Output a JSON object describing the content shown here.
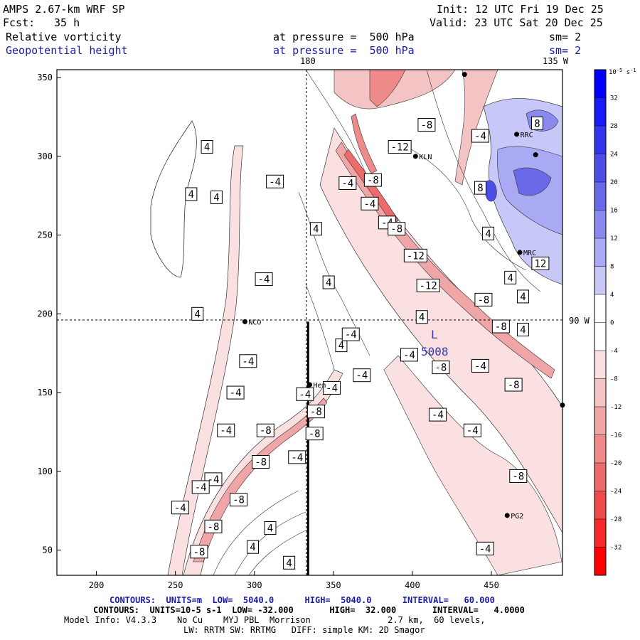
{
  "header": {
    "model": "AMPS 2.67-km WRF SP",
    "init": "Init: 12 UTC Fri 19 Dec 25",
    "fcst_label": "Fcst:",
    "fcst_value": "35 h",
    "valid": "Valid: 23 UTC Sat 20 Dec 25",
    "field1_name": "Relative vorticity",
    "field1_level": "at pressure =  500 hPa",
    "field1_sm": "sm= 2",
    "field2_name": "Geopotential height",
    "field2_level": "at pressure =  500 hPa",
    "field2_sm": "sm= 2"
  },
  "map_labels": {
    "lon_180": "180",
    "lon_135w": "135 W",
    "lon_90w": "90 W",
    "low_symbol": "L",
    "low_value": "5008"
  },
  "stations": [
    {
      "name": "NCO",
      "x": 294,
      "y": 195
    },
    {
      "name": "Hen",
      "x": 335,
      "y": 155
    },
    {
      "name": "KLN",
      "x": 402,
      "y": 300
    },
    {
      "name": "RRC",
      "x": 466,
      "y": 314
    },
    {
      "name": "MRC",
      "x": 468,
      "y": 239
    },
    {
      "name": "PG2",
      "x": 460,
      "y": 72
    },
    {
      "name": "",
      "x": 433,
      "y": 352
    },
    {
      "name": "",
      "x": 495,
      "y": 142
    },
    {
      "name": "",
      "x": 478,
      "y": 301
    }
  ],
  "contour_labels": [
    {
      "text": "4",
      "x": 270,
      "y": 306
    },
    {
      "text": "4",
      "x": 260,
      "y": 276
    },
    {
      "text": "4",
      "x": 276,
      "y": 274
    },
    {
      "text": "4",
      "x": 264,
      "y": 200
    },
    {
      "text": "-4",
      "x": 313,
      "y": 284
    },
    {
      "text": "-4",
      "x": 306,
      "y": 222
    },
    {
      "text": "-4",
      "x": 296,
      "y": 170
    },
    {
      "text": "-4",
      "x": 288,
      "y": 150
    },
    {
      "text": "-4",
      "x": 282,
      "y": 126
    },
    {
      "text": "-4",
      "x": 274,
      "y": 95
    },
    {
      "text": "-4",
      "x": 266,
      "y": 90
    },
    {
      "text": "-4",
      "x": 253,
      "y": 77
    },
    {
      "text": "-8",
      "x": 307,
      "y": 126
    },
    {
      "text": "-8",
      "x": 304,
      "y": 106
    },
    {
      "text": "-8",
      "x": 290,
      "y": 82
    },
    {
      "text": "-8",
      "x": 274,
      "y": 65
    },
    {
      "text": "-8",
      "x": 265,
      "y": 49
    },
    {
      "text": "4",
      "x": 339,
      "y": 254
    },
    {
      "text": "4",
      "x": 347,
      "y": 220
    },
    {
      "text": "4",
      "x": 355,
      "y": 180
    },
    {
      "text": "-4",
      "x": 359,
      "y": 283
    },
    {
      "text": "-4",
      "x": 373,
      "y": 270
    },
    {
      "text": "-4",
      "x": 384,
      "y": 258
    },
    {
      "text": "-4",
      "x": 361,
      "y": 187
    },
    {
      "text": "-4",
      "x": 349,
      "y": 153
    },
    {
      "text": "-4",
      "x": 332,
      "y": 149
    },
    {
      "text": "-4",
      "x": 327,
      "y": 109
    },
    {
      "text": "-4",
      "x": 368,
      "y": 161
    },
    {
      "text": "-8",
      "x": 375,
      "y": 285
    },
    {
      "text": "-8",
      "x": 390,
      "y": 254
    },
    {
      "text": "-8",
      "x": 339,
      "y": 138
    },
    {
      "text": "-8",
      "x": 338,
      "y": 124
    },
    {
      "text": "-12",
      "x": 392,
      "y": 306
    },
    {
      "text": "-12",
      "x": 402,
      "y": 237
    },
    {
      "text": "-12",
      "x": 410,
      "y": 218
    },
    {
      "text": "-8",
      "x": 409,
      "y": 320
    },
    {
      "text": "4",
      "x": 406,
      "y": 198
    },
    {
      "text": "4",
      "x": 448,
      "y": 251
    },
    {
      "text": "4",
      "x": 462,
      "y": 223
    },
    {
      "text": "4",
      "x": 470,
      "y": 211
    },
    {
      "text": "4",
      "x": 470,
      "y": 190
    },
    {
      "text": "8",
      "x": 479,
      "y": 321
    },
    {
      "text": "8",
      "x": 443,
      "y": 280
    },
    {
      "text": "12",
      "x": 481,
      "y": 232
    },
    {
      "text": "-4",
      "x": 443,
      "y": 313
    },
    {
      "text": "-4",
      "x": 398,
      "y": 174
    },
    {
      "text": "-4",
      "x": 443,
      "y": 167
    },
    {
      "text": "-4",
      "x": 416,
      "y": 136
    },
    {
      "text": "-4",
      "x": 438,
      "y": 126
    },
    {
      "text": "-4",
      "x": 446,
      "y": 51
    },
    {
      "text": "-8",
      "x": 445,
      "y": 209
    },
    {
      "text": "-8",
      "x": 456,
      "y": 192
    },
    {
      "text": "-8",
      "x": 418,
      "y": 166
    },
    {
      "text": "-8",
      "x": 464,
      "y": 155
    },
    {
      "text": "-8",
      "x": 467,
      "y": 97
    },
    {
      "text": "4",
      "x": 299,
      "y": 52
    },
    {
      "text": "4",
      "x": 310,
      "y": 64
    },
    {
      "text": "4",
      "x": 322,
      "y": 42
    }
  ],
  "footer": {
    "contours1": "CONTOURS:  UNITS=m  LOW=  5040.0      HIGH=  5040.0      INTERVAL=   60.000",
    "contours2": "CONTOURS:  UNITS=10-5 s-1  LOW= -32.000       HIGH=  32.000       INTERVAL=   4.0000",
    "model_info": "Model Info: V4.3.3    No Cu    MYJ PBL  Morrison               2.7 km,  60 levels,",
    "model_info2": "LW: RRTM SW: RRTMG   DIFF: simple KM: 2D Smagor"
  },
  "chart_data": {
    "type": "heatmap",
    "title": "Relative vorticity / Geopotential height at 500 hPa",
    "xlabel": "",
    "ylabel": "",
    "xlim": [
      175,
      495
    ],
    "ylim": [
      34,
      355
    ],
    "x_ticks": [
      200,
      250,
      300,
      350,
      400,
      450
    ],
    "y_ticks": [
      50,
      100,
      150,
      200,
      250,
      300,
      350
    ],
    "colorbar": {
      "units": "10-5 s-1",
      "levels": [
        -32,
        -28,
        -24,
        -20,
        -16,
        -12,
        -8,
        -4,
        0,
        4,
        8,
        12,
        16,
        20,
        24,
        28,
        32
      ],
      "tick_labels": [
        "32",
        "28",
        "24",
        "20",
        "16",
        "12",
        "8",
        "4",
        "0",
        "-4",
        "-8",
        "-12",
        "-16",
        "-20",
        "-24",
        "-28",
        "-32"
      ],
      "colors_top_to_bottom": [
        "#0000ff",
        "#1a1af5",
        "#3434ee",
        "#4e4ee6",
        "#6a6ae8",
        "#8a8aee",
        "#a9a9f4",
        "#c8c8f8",
        "#ffffff",
        "#ffffff",
        "#fae0e0",
        "#f4c3c3",
        "#f0a6a6",
        "#ee8a8a",
        "#ec6c6c",
        "#ef4a4a",
        "#f42a2a",
        "#ff0000"
      ]
    },
    "contour_low": -32,
    "contour_high": 32,
    "contour_interval": 4,
    "height_low": 5040,
    "height_high": 5040,
    "height_interval": 60,
    "cross_section": {
      "x": 334,
      "y_from": 34,
      "y_to": 195
    }
  }
}
